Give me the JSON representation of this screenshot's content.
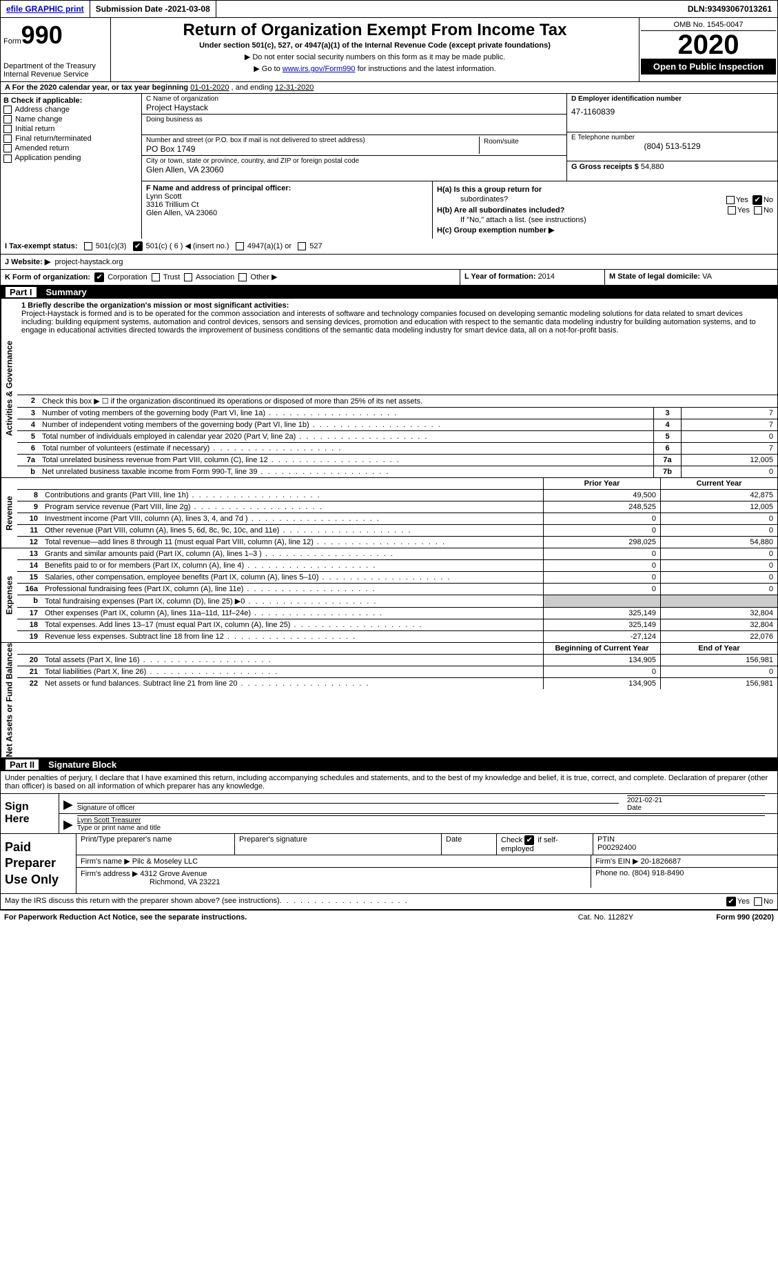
{
  "topbar": {
    "efile": "efile GRAPHIC print",
    "subdate_lbl": "Submission Date - ",
    "subdate": "2021-03-08",
    "dln_lbl": "DLN: ",
    "dln": "93493067013261"
  },
  "header": {
    "form_word": "Form",
    "form_num": "990",
    "dept": "Department of the Treasury\nInternal Revenue Service",
    "title": "Return of Organization Exempt From Income Tax",
    "subtitle": "Under section 501(c), 527, or 4947(a)(1) of the Internal Revenue Code (except private foundations)",
    "note1": "▶ Do not enter social security numbers on this form as it may be made public.",
    "note2_pre": "▶ Go to ",
    "note2_link": "www.irs.gov/Form990",
    "note2_post": " for instructions and the latest information.",
    "omb": "OMB No. 1545-0047",
    "year": "2020",
    "open": "Open to Public Inspection"
  },
  "rowA": {
    "text_pre": "A  For the 2020 calendar year, or tax year beginning ",
    "begin": "01-01-2020",
    "mid": "  , and ending ",
    "end": "12-31-2020"
  },
  "boxB": {
    "title": "B Check if applicable:",
    "items": [
      "Address change",
      "Name change",
      "Initial return",
      "Final return/terminated",
      "Amended return",
      "Application pending"
    ]
  },
  "boxC": {
    "name_lbl": "C Name of organization",
    "name": "Project Haystack",
    "dba_lbl": "Doing business as",
    "street_lbl": "Number and street (or P.O. box if mail is not delivered to street address)",
    "street": "PO Box 1749",
    "room_lbl": "Room/suite",
    "city_lbl": "City or town, state or province, country, and ZIP or foreign postal code",
    "city": "Glen Allen, VA  23060"
  },
  "boxD": {
    "lbl": "D Employer identification number",
    "val": "47-1160839"
  },
  "boxE": {
    "lbl": "E Telephone number",
    "val": "(804) 513-5129"
  },
  "boxG": {
    "lbl": "G Gross receipts $",
    "val": "54,880"
  },
  "boxF": {
    "lbl": "F Name and address of principal officer:",
    "name": "Lynn Scott",
    "addr1": "3316 Trillium Ct",
    "addr2": "Glen Allen, VA  23060"
  },
  "boxH": {
    "a": "H(a)  Is this a group return for",
    "a2": "subordinates?",
    "b": "H(b)  Are all subordinates included?",
    "bnote": "If \"No,\" attach a list. (see instructions)",
    "c": "H(c)  Group exemption number ▶"
  },
  "rowI": {
    "lbl": "I   Tax-exempt status:",
    "opts": [
      "501(c)(3)",
      "501(c) ( 6 ) ◀ (insert no.)",
      "4947(a)(1) or",
      "527"
    ]
  },
  "rowJ": {
    "lbl": "J   Website: ▶",
    "val": "project-haystack.org"
  },
  "rowK": {
    "lbl": "K Form of organization:",
    "opts": [
      "Corporation",
      "Trust",
      "Association",
      "Other ▶"
    ],
    "L": "L Year of formation: ",
    "Lval": "2014",
    "M": "M State of legal domicile: ",
    "Mval": "VA"
  },
  "part1": {
    "num": "Part I",
    "title": "Summary"
  },
  "mission": {
    "lbl": "1   Briefly describe the organization's mission or most significant activities:",
    "text": "Project-Haystack is formed and is to be operated for the common association and interests of software and technology companies focused on developing semantic modeling solutions for data related to smart devices including: building equipment systems, automation and control devices, sensors and sensing devices, promotion and education with respect to the semantic data modeling industry for building automation systems, and to engage in educational activities directed towards the improvement of business conditions of the semantic data modeling industry for smart device data, all on a not-for-profit basis."
  },
  "vtabs": {
    "activities": "Activities & Governance",
    "revenue": "Revenue",
    "expenses": "Expenses",
    "netassets": "Net Assets or Fund Balances"
  },
  "lines_gov": [
    {
      "n": "2",
      "d": "Check this box ▶ ☐ if the organization discontinued its operations or disposed of more than 25% of its net assets.",
      "box": "",
      "v": ""
    },
    {
      "n": "3",
      "d": "Number of voting members of the governing body (Part VI, line 1a)",
      "box": "3",
      "v": "7"
    },
    {
      "n": "4",
      "d": "Number of independent voting members of the governing body (Part VI, line 1b)",
      "box": "4",
      "v": "7"
    },
    {
      "n": "5",
      "d": "Total number of individuals employed in calendar year 2020 (Part V, line 2a)",
      "box": "5",
      "v": "0"
    },
    {
      "n": "6",
      "d": "Total number of volunteers (estimate if necessary)",
      "box": "6",
      "v": "7"
    },
    {
      "n": "7a",
      "d": "Total unrelated business revenue from Part VIII, column (C), line 12",
      "box": "7a",
      "v": "12,005"
    },
    {
      "n": "b",
      "d": "Net unrelated business taxable income from Form 990-T, line 39",
      "box": "7b",
      "v": "0"
    }
  ],
  "col_hdrs": {
    "prior": "Prior Year",
    "current": "Current Year",
    "begin": "Beginning of Current Year",
    "end": "End of Year"
  },
  "lines_rev": [
    {
      "n": "8",
      "d": "Contributions and grants (Part VIII, line 1h)",
      "p": "49,500",
      "c": "42,875"
    },
    {
      "n": "9",
      "d": "Program service revenue (Part VIII, line 2g)",
      "p": "248,525",
      "c": "12,005"
    },
    {
      "n": "10",
      "d": "Investment income (Part VIII, column (A), lines 3, 4, and 7d )",
      "p": "0",
      "c": "0"
    },
    {
      "n": "11",
      "d": "Other revenue (Part VIII, column (A), lines 5, 6d, 8c, 9c, 10c, and 11e)",
      "p": "0",
      "c": "0"
    },
    {
      "n": "12",
      "d": "Total revenue—add lines 8 through 11 (must equal Part VIII, column (A), line 12)",
      "p": "298,025",
      "c": "54,880"
    }
  ],
  "lines_exp": [
    {
      "n": "13",
      "d": "Grants and similar amounts paid (Part IX, column (A), lines 1–3 )",
      "p": "0",
      "c": "0"
    },
    {
      "n": "14",
      "d": "Benefits paid to or for members (Part IX, column (A), line 4)",
      "p": "0",
      "c": "0"
    },
    {
      "n": "15",
      "d": "Salaries, other compensation, employee benefits (Part IX, column (A), lines 5–10)",
      "p": "0",
      "c": "0"
    },
    {
      "n": "16a",
      "d": "Professional fundraising fees (Part IX, column (A), line 11e)",
      "p": "0",
      "c": "0"
    },
    {
      "n": "b",
      "d": "Total fundraising expenses (Part IX, column (D), line 25) ▶0",
      "p": "GRAY",
      "c": "GRAY"
    },
    {
      "n": "17",
      "d": "Other expenses (Part IX, column (A), lines 11a–11d, 11f–24e)",
      "p": "325,149",
      "c": "32,804"
    },
    {
      "n": "18",
      "d": "Total expenses. Add lines 13–17 (must equal Part IX, column (A), line 25)",
      "p": "325,149",
      "c": "32,804"
    },
    {
      "n": "19",
      "d": "Revenue less expenses. Subtract line 18 from line 12",
      "p": "-27,124",
      "c": "22,076"
    }
  ],
  "lines_net": [
    {
      "n": "20",
      "d": "Total assets (Part X, line 16)",
      "p": "134,905",
      "c": "156,981"
    },
    {
      "n": "21",
      "d": "Total liabilities (Part X, line 26)",
      "p": "0",
      "c": "0"
    },
    {
      "n": "22",
      "d": "Net assets or fund balances. Subtract line 21 from line 20",
      "p": "134,905",
      "c": "156,981"
    }
  ],
  "part2": {
    "num": "Part II",
    "title": "Signature Block"
  },
  "sig": {
    "decl": "Under penalties of perjury, I declare that I have examined this return, including accompanying schedules and statements, and to the best of my knowledge and belief, it is true, correct, and complete. Declaration of preparer (other than officer) is based on all information of which preparer has any knowledge.",
    "sign_here": "Sign Here",
    "sig_officer": "Signature of officer",
    "date": "Date",
    "date_val": "2021-02-21",
    "name_title": "Lynn Scott  Treasurer",
    "type_name": "Type or print name and title"
  },
  "prep": {
    "lbl": "Paid Preparer Use Only",
    "h1": "Print/Type preparer's name",
    "h2": "Preparer's signature",
    "h3": "Date",
    "h4": "Check",
    "h4b": "if self-employed",
    "h5": "PTIN",
    "ptin": "P00292400",
    "firm_name_lbl": "Firm's name    ▶",
    "firm_name": "Pilc & Moseley LLC",
    "firm_ein_lbl": "Firm's EIN ▶",
    "firm_ein": "20-1826687",
    "firm_addr_lbl": "Firm's address ▶",
    "firm_addr1": "4312 Grove Avenue",
    "firm_addr2": "Richmond, VA  23221",
    "phone_lbl": "Phone no.",
    "phone": "(804) 918-8490"
  },
  "discuss": "May the IRS discuss this return with the preparer shown above? (see instructions)",
  "footer": {
    "l": "For Paperwork Reduction Act Notice, see the separate instructions.",
    "m": "Cat. No. 11282Y",
    "r": "Form 990 (2020)"
  }
}
